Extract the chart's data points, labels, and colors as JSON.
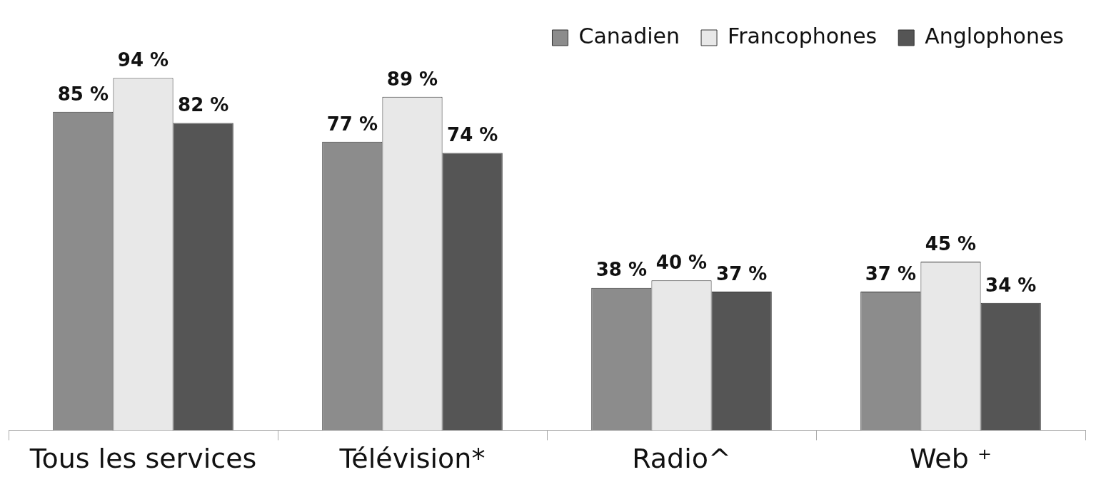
{
  "chart_data": {
    "type": "bar",
    "categories": [
      "Tous les services",
      "Télévision*",
      "Radio^",
      "Web ⁺"
    ],
    "legend": "top right",
    "series": [
      {
        "name": "Canadien",
        "color": "#8c8c8c",
        "values": [
          85,
          77,
          38,
          37
        ],
        "value_labels": [
          "85 %",
          "77 %",
          "38 %",
          "37 %"
        ]
      },
      {
        "name": "Francophones",
        "color": "#e8e8e8",
        "values": [
          94,
          89,
          40,
          45
        ],
        "value_labels": [
          "94 %",
          "89 %",
          "40 %",
          "45 %"
        ]
      },
      {
        "name": "Anglophones",
        "color": "#555555",
        "values": [
          82,
          74,
          37,
          34
        ],
        "value_labels": [
          "82 %",
          "74 %",
          "37 %",
          "34 %"
        ]
      }
    ]
  }
}
